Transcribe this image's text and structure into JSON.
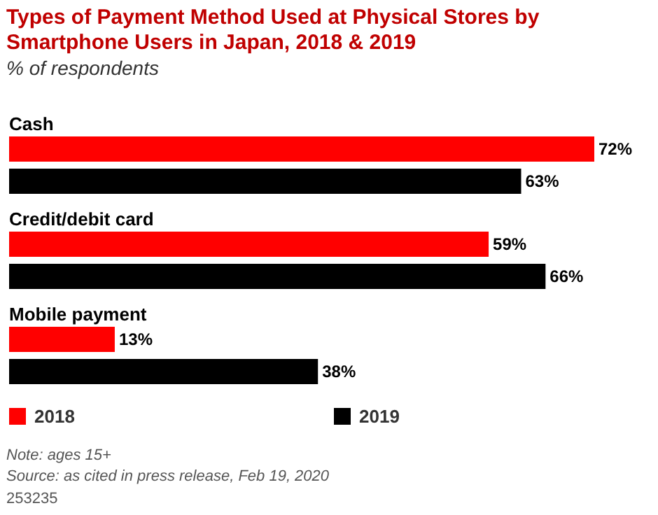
{
  "chart_data": {
    "type": "bar",
    "orientation": "horizontal",
    "title": "Types of Payment Method Used at Physical Stores by Smartphone Users in Japan, 2018 & 2019",
    "subtitle": "% of respondents",
    "categories": [
      "Cash",
      "Credit/debit card",
      "Mobile payment"
    ],
    "series": [
      {
        "name": "2018",
        "color": "#ff0000",
        "values": [
          72,
          59,
          13
        ],
        "value_labels": [
          "72%",
          "59%",
          "13%"
        ]
      },
      {
        "name": "2019",
        "color": "#000000",
        "values": [
          63,
          66,
          38
        ],
        "value_labels": [
          "63%",
          "66%",
          "38%"
        ]
      }
    ],
    "legend": "bottom",
    "annotations": [
      "Note: ages 15+",
      "Source: as cited in press release, Feb 19, 2020",
      "253235"
    ]
  }
}
